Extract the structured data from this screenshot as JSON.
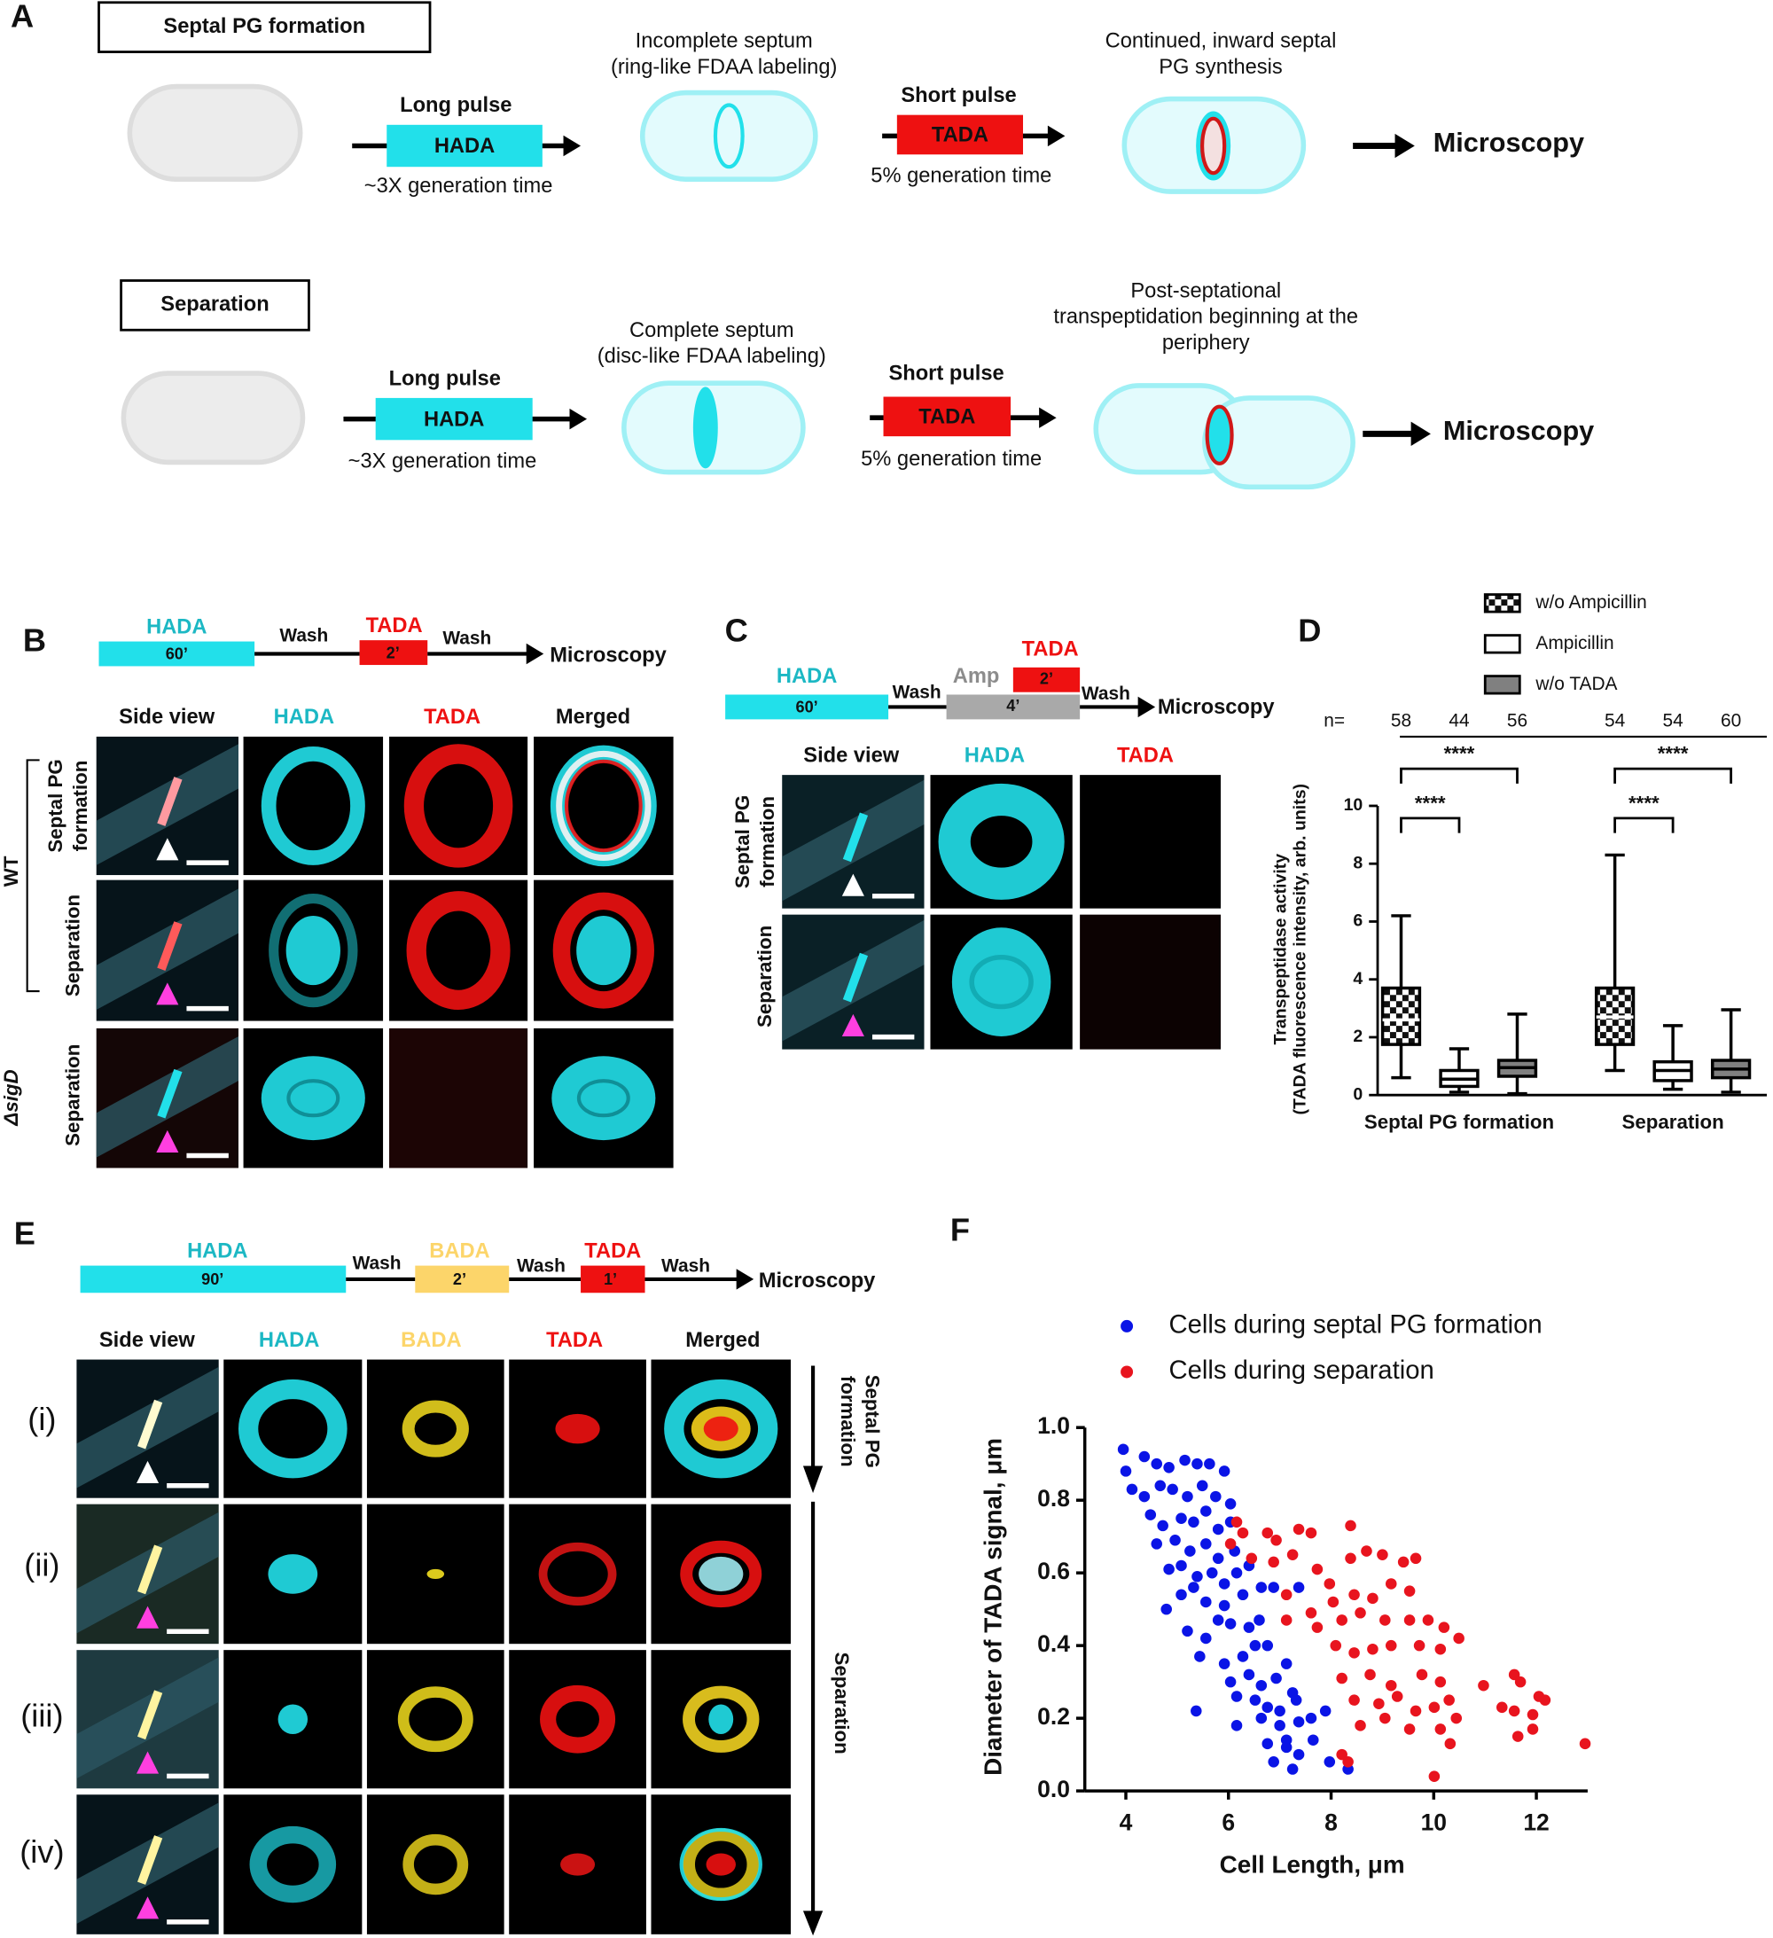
{
  "panel_a": {
    "letter": "A",
    "rows": [
      {
        "title": "Septal PG formation",
        "pulse1": "Long pulse",
        "dye1": "HADA",
        "time1": "~3X generation time",
        "state1": [
          "Incomplete septum",
          "(ring-like FDAA labeling)"
        ],
        "pulse2": "Short pulse",
        "dye2": "TADA",
        "time2": "5% generation time",
        "state2": [
          "Continued, inward septal",
          "PG synthesis"
        ],
        "output": "Microscopy"
      },
      {
        "title": "Separation",
        "pulse1": "Long pulse",
        "dye1": "HADA",
        "time1": "~3X generation time",
        "state1": [
          "Complete septum",
          "(disc-like FDAA labeling)"
        ],
        "pulse2": "Short pulse",
        "dye2": "TADA",
        "time2": "5% generation time",
        "state2": [
          "Post-septational",
          "transpeptidation beginning at the",
          "periphery"
        ],
        "output": "Microscopy"
      }
    ]
  },
  "panel_b": {
    "letter": "B",
    "timeline": {
      "dye1": "HADA",
      "time1": "60’",
      "wash1": "Wash",
      "dye2": "TADA",
      "time2": "2’",
      "wash2": "Wash",
      "output": "Microscopy"
    },
    "columns": [
      "Side view",
      "HADA",
      "TADA",
      "Merged"
    ],
    "rows": [
      [
        "Septal PG",
        "formation"
      ],
      [
        "Separation"
      ],
      [
        "Separation"
      ]
    ],
    "groups": [
      "WT",
      "ΔsigD"
    ]
  },
  "panel_c": {
    "letter": "C",
    "timeline": {
      "dye1": "HADA",
      "time1": "60’",
      "wash1": "Wash",
      "drug": "Amp",
      "drug_time": "4’",
      "dye2": "TADA",
      "time2": "2’",
      "wash2": "Wash",
      "output": "Microscopy"
    },
    "columns": [
      "Side view",
      "HADA",
      "TADA"
    ],
    "rows": [
      [
        "Septal PG",
        "formation"
      ],
      [
        "Separation"
      ]
    ]
  },
  "panel_e": {
    "letter": "E",
    "timeline": {
      "dye1": "HADA",
      "time1": "90’",
      "wash1": "Wash",
      "dye2": "BADA",
      "time2": "2’",
      "wash2": "Wash",
      "dye3": "TADA",
      "time3": "1’",
      "wash3": "Wash",
      "output": "Microscopy"
    },
    "columns": [
      "Side view",
      "HADA",
      "BADA",
      "TADA",
      "Merged"
    ],
    "rows": [
      "(i)",
      "(ii)",
      "(iii)",
      "(iv)"
    ],
    "phases": [
      [
        "Septal PG",
        "formation"
      ],
      [
        "Separation"
      ]
    ]
  },
  "chart_data": [
    {
      "type": "box",
      "letter": "D",
      "y_label": [
        "Transpeptidase activity",
        "(TADA fluorescence intensity, arb. units)"
      ],
      "categories": [
        "Septal PG formation",
        "Separation"
      ],
      "n_label": "n=",
      "series": [
        {
          "name": "w/o Ampicillin",
          "color": "#ffffff",
          "pattern": "checker",
          "n": [
            58,
            54
          ],
          "whisker_low": [
            0.6,
            0.85
          ],
          "q1": [
            1.75,
            1.75
          ],
          "median": [
            2.6,
            2.7
          ],
          "q3": [
            3.7,
            3.7
          ],
          "whisker_high": [
            6.2,
            8.3
          ]
        },
        {
          "name": "Ampicillin",
          "color": "#ffffff",
          "n": [
            44,
            54
          ],
          "whisker_low": [
            0.1,
            0.2
          ],
          "q1": [
            0.3,
            0.5
          ],
          "median": [
            0.55,
            0.85
          ],
          "q3": [
            0.85,
            1.15
          ],
          "whisker_high": [
            1.6,
            2.4
          ]
        },
        {
          "name": "w/o TADA",
          "color": "#808080",
          "n": [
            56,
            60
          ],
          "whisker_low": [
            0.05,
            0.1
          ],
          "q1": [
            0.65,
            0.6
          ],
          "median": [
            0.95,
            0.9
          ],
          "q3": [
            1.2,
            1.2
          ],
          "whisker_high": [
            2.8,
            2.95
          ]
        }
      ],
      "significance": [
        "****",
        "****",
        "****",
        "****"
      ],
      "ylim": [
        0,
        10
      ],
      "yticks": [
        0,
        2,
        4,
        6,
        8,
        10
      ]
    },
    {
      "type": "scatter",
      "letter": "F",
      "x_label": "Cell Length, μm",
      "y_label": "Diameter of TADA signal, μm",
      "xlim": [
        3.2,
        13
      ],
      "xticks": [
        4,
        6,
        8,
        10,
        12
      ],
      "ylim": [
        0,
        1
      ],
      "yticks": [
        {
          "value": 0,
          "label": "0.0"
        },
        0.2,
        0.4,
        0.6,
        0.8,
        {
          "value": 1,
          "label": "1.0"
        }
      ],
      "series": [
        {
          "name": "Cells during septal PG formation",
          "color": "#0a14e6",
          "x": [
            3.95,
            4.0,
            4.36,
            4.6,
            4.84,
            5.15,
            5.39,
            5.63,
            5.92,
            4.12,
            4.36,
            4.67,
            4.91,
            5.2,
            5.49,
            5.75,
            6.04,
            4.48,
            4.72,
            5.08,
            5.32,
            5.56,
            5.8,
            6.04,
            4.6,
            4.96,
            5.25,
            5.56,
            5.8,
            6.12,
            4.84,
            5.08,
            5.39,
            5.68,
            5.92,
            6.16,
            6.4,
            4.79,
            5.08,
            5.32,
            5.56,
            5.92,
            6.28,
            6.64,
            6.88,
            7.37,
            5.2,
            5.56,
            5.8,
            6.04,
            6.4,
            6.6,
            5.44,
            5.92,
            6.28,
            6.52,
            6.76,
            6.04,
            6.4,
            6.64,
            6.93,
            7.13,
            7.25,
            6.16,
            6.52,
            6.76,
            7.0,
            7.32,
            5.37,
            6.16,
            6.64,
            7.0,
            7.37,
            7.61,
            7.89,
            6.76,
            7.13,
            7.37,
            6.88,
            7.25,
            7.97,
            8.33,
            7.13,
            7.65
          ],
          "y": [
            0.94,
            0.88,
            0.92,
            0.9,
            0.89,
            0.91,
            0.9,
            0.9,
            0.88,
            0.83,
            0.81,
            0.84,
            0.83,
            0.81,
            0.84,
            0.81,
            0.79,
            0.76,
            0.73,
            0.75,
            0.74,
            0.77,
            0.72,
            0.74,
            0.68,
            0.69,
            0.66,
            0.68,
            0.64,
            0.66,
            0.61,
            0.62,
            0.59,
            0.6,
            0.57,
            0.6,
            0.62,
            0.5,
            0.54,
            0.56,
            0.52,
            0.51,
            0.54,
            0.56,
            0.56,
            0.56,
            0.44,
            0.42,
            0.47,
            0.46,
            0.45,
            0.47,
            0.37,
            0.35,
            0.37,
            0.4,
            0.4,
            0.3,
            0.32,
            0.29,
            0.31,
            0.35,
            0.27,
            0.26,
            0.25,
            0.23,
            0.22,
            0.25,
            0.22,
            0.18,
            0.2,
            0.18,
            0.19,
            0.2,
            0.22,
            0.13,
            0.12,
            0.1,
            0.08,
            0.06,
            0.08,
            0.06,
            0.14,
            0.14
          ]
        },
        {
          "name": "Cells during separation",
          "color": "#e8141e",
          "x": [
            6.16,
            6.28,
            6.76,
            6.04,
            6.45,
            6.93,
            7.37,
            7.61,
            8.38,
            6.88,
            7.25,
            7.73,
            7.97,
            8.38,
            8.69,
            9.0,
            9.41,
            9.65,
            7.13,
            7.61,
            8.04,
            8.45,
            8.81,
            9.17,
            9.53,
            7.13,
            7.73,
            8.21,
            8.57,
            9.05,
            9.53,
            9.89,
            10.2,
            10.49,
            8.09,
            8.45,
            8.81,
            9.17,
            9.72,
            10.13,
            8.21,
            8.76,
            9.17,
            9.77,
            10.13,
            10.97,
            11.57,
            11.69,
            12.05,
            12.17,
            8.45,
            8.93,
            9.29,
            9.65,
            10.01,
            10.3,
            10.44,
            11.33,
            11.57,
            11.93,
            8.57,
            9.05,
            9.53,
            10.13,
            10.32,
            11.64,
            11.93,
            12.95,
            10.01,
            8.21,
            8.33
          ],
          "y": [
            0.74,
            0.71,
            0.71,
            0.68,
            0.64,
            0.69,
            0.72,
            0.71,
            0.73,
            0.63,
            0.65,
            0.61,
            0.57,
            0.64,
            0.66,
            0.65,
            0.63,
            0.64,
            0.54,
            0.49,
            0.52,
            0.54,
            0.53,
            0.57,
            0.55,
            0.47,
            0.45,
            0.47,
            0.49,
            0.47,
            0.47,
            0.47,
            0.45,
            0.42,
            0.4,
            0.38,
            0.39,
            0.4,
            0.4,
            0.39,
            0.31,
            0.32,
            0.29,
            0.32,
            0.3,
            0.29,
            0.32,
            0.3,
            0.26,
            0.25,
            0.25,
            0.24,
            0.26,
            0.22,
            0.23,
            0.25,
            0.2,
            0.23,
            0.22,
            0.21,
            0.18,
            0.2,
            0.17,
            0.17,
            0.13,
            0.15,
            0.17,
            0.13,
            0.04,
            0.1,
            0.08
          ]
        }
      ]
    }
  ]
}
